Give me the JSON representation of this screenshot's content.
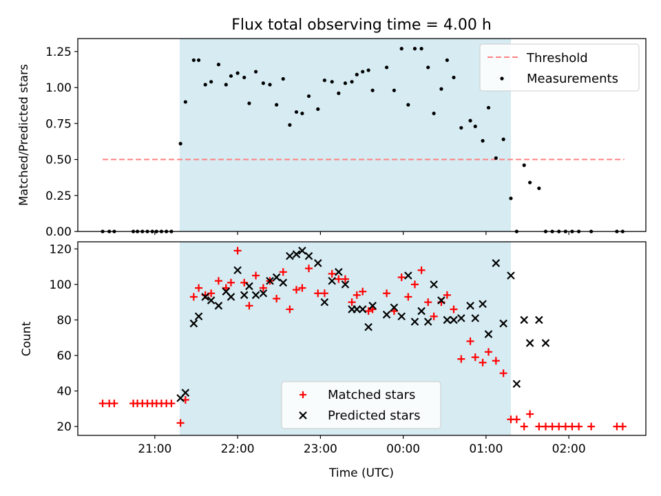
{
  "title": "Flux total observing time = 4.00 h",
  "chart_data": [
    {
      "type": "scatter",
      "ylabel": "Matched/Predicted stars",
      "xlabel": "",
      "ylim": [
        0,
        1.34
      ],
      "yticks": [
        0,
        0.25,
        0.5,
        0.75,
        1.0,
        1.25
      ],
      "ytick_labels": [
        "0.00",
        "0.25",
        "0.50",
        "0.75",
        "1.00",
        "1.25"
      ],
      "x_unit": "hours since 00:00 UTC",
      "xlim": [
        -3.93,
        2.93
      ],
      "xticks": [
        -3,
        -2,
        -1,
        0,
        1,
        2
      ],
      "observing_window": [
        -2.7,
        1.3
      ],
      "legend_position": "upper right",
      "grid": false,
      "legend": {
        "threshold": "Threshold",
        "measurements": "Measurements"
      },
      "threshold": {
        "value": 0.5,
        "x_range": [
          -3.63,
          2.67
        ],
        "color": "#ff8080"
      },
      "measurements": {
        "color": "#000000",
        "x": [
          -3.63,
          -3.55,
          -3.49,
          -3.26,
          -3.21,
          -3.15,
          -3.09,
          -3.03,
          -2.98,
          -2.92,
          -2.86,
          -2.8,
          -2.69,
          -2.63,
          -2.53,
          -2.47,
          -2.39,
          -2.32,
          -2.23,
          -2.14,
          -2.08,
          -2.0,
          -1.92,
          -1.86,
          -1.78,
          -1.69,
          -1.61,
          -1.53,
          -1.45,
          -1.37,
          -1.29,
          -1.22,
          -1.14,
          -1.03,
          -0.95,
          -0.86,
          -0.78,
          -0.7,
          -0.62,
          -0.56,
          -0.49,
          -0.42,
          -0.37,
          -0.2,
          -0.11,
          -0.02,
          0.06,
          0.14,
          0.22,
          0.3,
          0.37,
          0.46,
          0.53,
          0.61,
          0.7,
          0.81,
          0.87,
          0.96,
          1.03,
          1.12,
          1.21,
          1.3,
          1.37,
          1.46,
          1.53,
          1.64,
          1.72,
          1.8,
          1.88,
          1.96,
          2.04,
          2.12,
          2.27,
          2.58,
          2.65
        ],
        "y": [
          0,
          0,
          0,
          0,
          0,
          0,
          0,
          0,
          0,
          0,
          0,
          0,
          0.61,
          0.9,
          1.19,
          1.19,
          1.02,
          1.04,
          1.16,
          1.02,
          1.08,
          1.1,
          1.07,
          0.89,
          1.11,
          1.03,
          1.02,
          0.88,
          1.06,
          0.74,
          0.83,
          0.82,
          0.94,
          0.85,
          1.05,
          1.04,
          0.96,
          1.03,
          1.04,
          1.09,
          1.11,
          1.12,
          0.98,
          1.14,
          0.98,
          1.27,
          0.88,
          1.27,
          1.27,
          1.14,
          0.82,
          0.99,
          1.19,
          1.07,
          0.72,
          0.77,
          0.73,
          0.63,
          0.86,
          0.51,
          0.64,
          0.23,
          0,
          0.46,
          0.34,
          0.3,
          0,
          0,
          0,
          0,
          0,
          0,
          0,
          0,
          0
        ]
      }
    },
    {
      "type": "scatter",
      "ylabel": "Count",
      "xlabel": "Time (UTC)",
      "ylim": [
        15,
        124
      ],
      "yticks": [
        20,
        40,
        60,
        80,
        100,
        120
      ],
      "ytick_labels": [
        "20",
        "40",
        "60",
        "80",
        "100",
        "120"
      ],
      "x_unit": "hours since 00:00 UTC",
      "xlim": [
        -3.93,
        2.93
      ],
      "xticks": [
        -3,
        -2,
        -1,
        0,
        1,
        2
      ],
      "xtick_labels": [
        "21:00",
        "22:00",
        "23:00",
        "00:00",
        "01:00",
        "02:00"
      ],
      "observing_window": [
        -2.7,
        1.3
      ],
      "legend_position": "lower center",
      "grid": false,
      "series": [
        {
          "name": "Matched stars",
          "marker": "plus",
          "color": "#ff0000",
          "x": [
            -3.63,
            -3.55,
            -3.49,
            -3.26,
            -3.21,
            -3.15,
            -3.09,
            -3.03,
            -2.98,
            -2.92,
            -2.86,
            -2.8,
            -2.69,
            -2.63,
            -2.53,
            -2.47,
            -2.39,
            -2.32,
            -2.23,
            -2.14,
            -2.08,
            -2.0,
            -1.92,
            -1.86,
            -1.78,
            -1.69,
            -1.61,
            -1.53,
            -1.45,
            -1.37,
            -1.29,
            -1.22,
            -1.14,
            -1.03,
            -0.95,
            -0.86,
            -0.78,
            -0.7,
            -0.62,
            -0.56,
            -0.49,
            -0.42,
            -0.37,
            -0.2,
            -0.11,
            -0.02,
            0.06,
            0.14,
            0.22,
            0.3,
            0.37,
            0.46,
            0.53,
            0.61,
            0.7,
            0.81,
            0.87,
            0.96,
            1.03,
            1.12,
            1.21,
            1.3,
            1.37,
            1.46,
            1.53,
            1.64,
            1.72,
            1.8,
            1.88,
            1.96,
            2.04,
            2.12,
            2.27,
            2.58,
            2.65
          ],
          "y": [
            33,
            33,
            33,
            33,
            33,
            33,
            33,
            33,
            33,
            33,
            33,
            33,
            22,
            35,
            93,
            98,
            94,
            95,
            102,
            98,
            101,
            119,
            101,
            88,
            105,
            98,
            102,
            92,
            107,
            86,
            97,
            98,
            109,
            95,
            95,
            106,
            103,
            103,
            90,
            94,
            96,
            85,
            86,
            95,
            85,
            104,
            93,
            100,
            108,
            90,
            82,
            90,
            94,
            86,
            58,
            68,
            59,
            56,
            62,
            57,
            50,
            24,
            24,
            20,
            27,
            20,
            20,
            20,
            20,
            20,
            20,
            20,
            20,
            20,
            20
          ]
        },
        {
          "name": "Predicted stars",
          "marker": "x",
          "color": "#000000",
          "x": [
            -2.69,
            -2.63,
            -2.53,
            -2.47,
            -2.39,
            -2.32,
            -2.23,
            -2.14,
            -2.08,
            -2.0,
            -1.92,
            -1.86,
            -1.78,
            -1.69,
            -1.61,
            -1.53,
            -1.45,
            -1.37,
            -1.29,
            -1.22,
            -1.14,
            -1.03,
            -0.95,
            -0.86,
            -0.78,
            -0.7,
            -0.62,
            -0.56,
            -0.49,
            -0.42,
            -0.37,
            -0.2,
            -0.11,
            -0.02,
            0.06,
            0.14,
            0.22,
            0.3,
            0.37,
            0.46,
            0.53,
            0.61,
            0.7,
            0.81,
            0.87,
            0.96,
            1.03,
            1.12,
            1.21,
            1.3,
            1.37,
            1.46,
            1.53,
            1.64,
            1.72
          ],
          "y": [
            36,
            39,
            78,
            82,
            93,
            91,
            88,
            96,
            93,
            108,
            94,
            99,
            94,
            95,
            102,
            104,
            101,
            116,
            117,
            119,
            116,
            112,
            90,
            102,
            107,
            100,
            86,
            86,
            86,
            76,
            88,
            83,
            87,
            82,
            105,
            79,
            85,
            79,
            100,
            91,
            80,
            80,
            81,
            88,
            81,
            89,
            72,
            112,
            78,
            105,
            44,
            80,
            67,
            80,
            67
          ]
        }
      ]
    }
  ]
}
